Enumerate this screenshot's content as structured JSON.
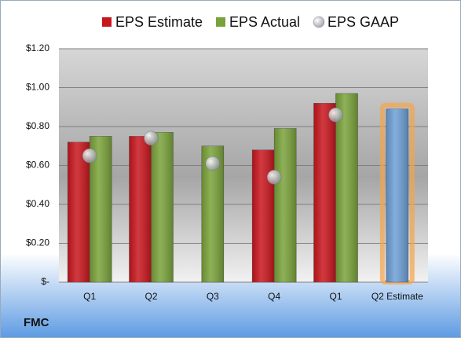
{
  "chart_data": {
    "type": "bar",
    "categories": [
      "Q1",
      "Q2",
      "Q3",
      "Q4",
      "Q1",
      "Q2 Estimate"
    ],
    "series": [
      {
        "name": "EPS Estimate",
        "color": "#c8161d",
        "colors": [
          "#c8161d",
          "#c8161d",
          "#c8161d",
          "#c8161d",
          "#c8161d",
          "#6e9fd6"
        ],
        "values": [
          0.72,
          0.75,
          null,
          0.68,
          0.92,
          0.89
        ]
      },
      {
        "name": "EPS Actual",
        "color": "#7aa23a",
        "values": [
          0.75,
          0.77,
          0.7,
          0.79,
          0.97,
          null
        ]
      },
      {
        "name": "EPS GAAP",
        "color": "#b8bcc4",
        "type": "scatter",
        "values": [
          0.65,
          0.74,
          0.61,
          0.54,
          0.86,
          null
        ]
      }
    ],
    "ylim": [
      0,
      1.2
    ],
    "yticks": [
      {
        "value": 0,
        "label": "$-"
      },
      {
        "value": 0.2,
        "label": "$0.20"
      },
      {
        "value": 0.4,
        "label": "$0.40"
      },
      {
        "value": 0.6,
        "label": "$0.60"
      },
      {
        "value": 0.8,
        "label": "$0.80"
      },
      {
        "value": 1.0,
        "label": "$1.00"
      },
      {
        "value": 1.2,
        "label": "$1.20"
      }
    ],
    "grid": true,
    "footer": "FMC"
  }
}
